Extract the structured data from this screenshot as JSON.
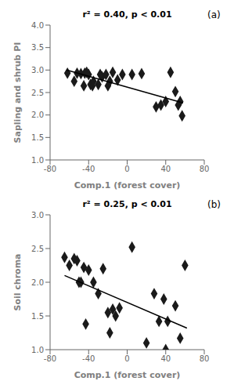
{
  "chart_data": [
    {
      "type": "scatter",
      "xlabel": "Comp.1 (forest cover)",
      "ylabel": "Sapling and shrub PI",
      "xlim": [
        -80,
        80
      ],
      "ylim": [
        1.0,
        4.0
      ],
      "xticks": [
        -80,
        -40,
        0,
        40,
        80
      ],
      "yticks": [
        {
          "value": 1.0,
          "label": "1.0"
        },
        {
          "value": 1.5,
          "label": "1.5"
        },
        {
          "value": 2.0,
          "label": "2.0"
        },
        {
          "value": 2.5,
          "label": "2.5"
        },
        {
          "value": 3.0,
          "label": "3.0"
        },
        {
          "value": 3.5,
          "label": "3.5"
        },
        {
          "value": 4.0,
          "label": "4.0"
        }
      ],
      "grid": false,
      "annotations": [
        "r² = 0.40, p < 0.01",
        "(a)"
      ],
      "series": [
        {
          "type": "scatter",
          "marker": "diamond",
          "color": "#1a1a1a",
          "x": [
            -62,
            -55,
            -52,
            -48,
            -45,
            -44,
            -42,
            -40,
            -38,
            -36,
            -35,
            -30,
            -28,
            -26,
            -22,
            -20,
            -18,
            -15,
            -10,
            -5,
            5,
            15,
            30,
            35,
            40,
            45,
            50,
            53,
            55,
            57
          ],
          "values": [
            2.93,
            2.75,
            2.93,
            2.92,
            2.65,
            2.93,
            2.95,
            2.9,
            2.68,
            2.65,
            2.75,
            2.68,
            2.9,
            2.85,
            2.9,
            2.65,
            2.75,
            2.95,
            2.78,
            2.9,
            2.9,
            2.92,
            2.18,
            2.22,
            2.3,
            2.95,
            2.52,
            2.22,
            2.3,
            1.98
          ]
        },
        {
          "type": "line",
          "color": "#000000",
          "x": [
            -63,
            58
          ],
          "values": [
            3.0,
            2.27
          ]
        }
      ]
    },
    {
      "type": "scatter",
      "xlabel": "Comp.1 (forest cover)",
      "ylabel": "Soil chroma",
      "xlim": [
        -80,
        80
      ],
      "ylim": [
        1.0,
        3.0
      ],
      "xticks": [
        -80,
        -40,
        0,
        40,
        80
      ],
      "yticks": [
        {
          "value": 1.0,
          "label": "1.0"
        },
        {
          "value": 1.5,
          "label": "1.5"
        },
        {
          "value": 2.0,
          "label": "2.0"
        },
        {
          "value": 2.5,
          "label": "2.5"
        },
        {
          "value": 3.0,
          "label": "3.0"
        }
      ],
      "grid": false,
      "annotations": [
        "r² = 0.25, p < 0.01",
        "(b)"
      ],
      "series": [
        {
          "type": "scatter",
          "marker": "diamond",
          "color": "#1a1a1a",
          "x": [
            -65,
            -60,
            -55,
            -52,
            -50,
            -48,
            -45,
            -43,
            -40,
            -35,
            -30,
            -25,
            -20,
            -18,
            -15,
            -12,
            -8,
            5,
            20,
            28,
            33,
            38,
            40,
            42,
            50,
            55,
            60
          ],
          "values": [
            2.37,
            2.25,
            2.35,
            2.32,
            2.0,
            2.0,
            2.22,
            1.38,
            2.18,
            2.0,
            1.83,
            2.2,
            1.55,
            1.25,
            1.6,
            1.5,
            1.62,
            2.52,
            1.1,
            1.83,
            1.42,
            1.75,
            1.0,
            1.42,
            1.65,
            1.17,
            2.25
          ]
        },
        {
          "type": "line",
          "color": "#000000",
          "x": [
            -65,
            62
          ],
          "values": [
            2.1,
            1.32
          ]
        }
      ]
    }
  ]
}
